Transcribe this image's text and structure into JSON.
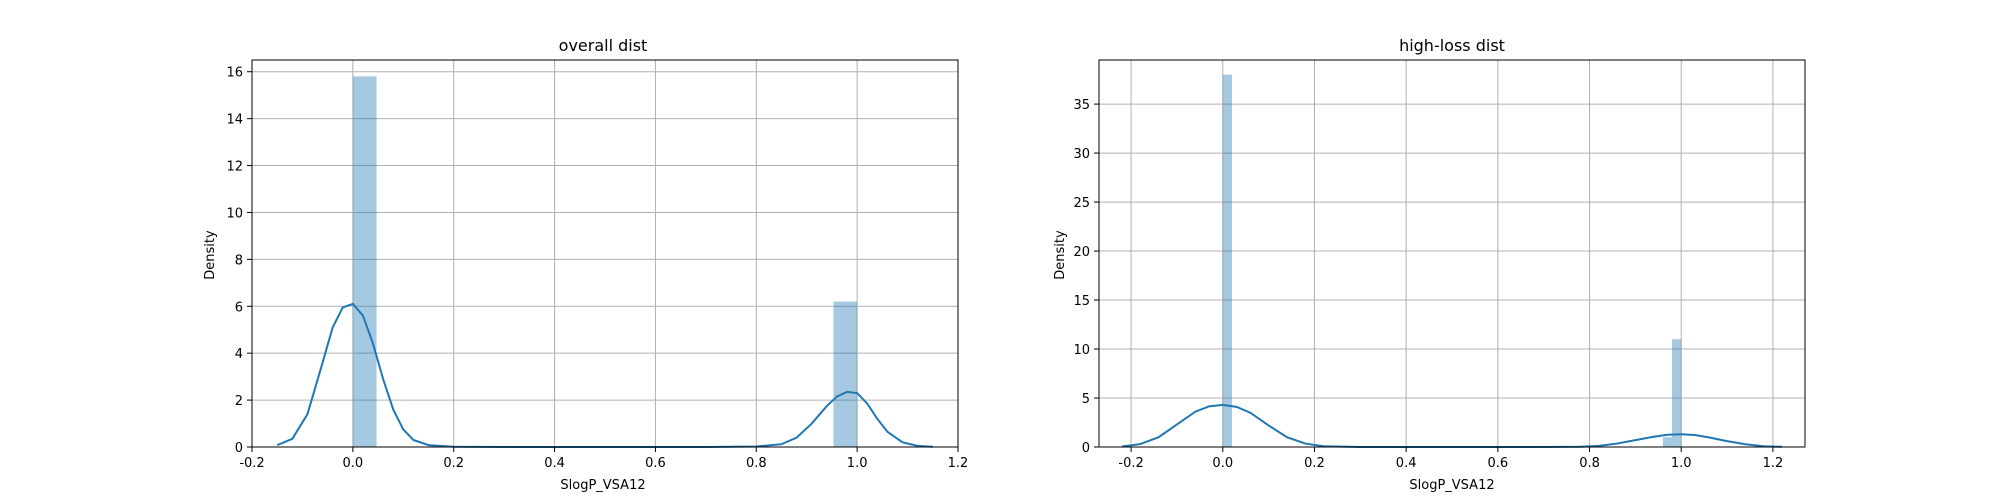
{
  "chart_data": [
    {
      "type": "histogram",
      "title": "overall dist",
      "xlabel": "SlogP_VSA12",
      "ylabel": "Density",
      "xlim": [
        -0.2,
        1.2
      ],
      "ylim": [
        0,
        16.5
      ],
      "xticks": [
        "-0.2",
        "0.0",
        "0.2",
        "0.4",
        "0.6",
        "0.8",
        "1.0",
        "1.2"
      ],
      "yticks": [
        "0",
        "2",
        "4",
        "6",
        "8",
        "10",
        "12",
        "14",
        "16"
      ],
      "grid": true,
      "series": [
        {
          "kind": "hist",
          "bins": [
            {
              "x0": 0.0,
              "x1": 0.047,
              "density": 15.8
            },
            {
              "x0": 0.953,
              "x1": 1.0,
              "density": 6.2
            }
          ]
        },
        {
          "kind": "kde",
          "x": [
            -0.15,
            -0.12,
            -0.09,
            -0.06,
            -0.04,
            -0.02,
            0.0,
            0.02,
            0.04,
            0.06,
            0.08,
            0.1,
            0.12,
            0.15,
            0.2,
            0.3,
            0.5,
            0.7,
            0.8,
            0.85,
            0.88,
            0.91,
            0.94,
            0.96,
            0.98,
            1.0,
            1.02,
            1.04,
            1.06,
            1.09,
            1.12,
            1.15
          ],
          "y": [
            0.08,
            0.35,
            1.4,
            3.6,
            5.1,
            5.95,
            6.1,
            5.6,
            4.4,
            2.9,
            1.6,
            0.75,
            0.3,
            0.08,
            0.01,
            0.0,
            0.0,
            0.0,
            0.02,
            0.12,
            0.4,
            1.0,
            1.75,
            2.15,
            2.35,
            2.3,
            1.85,
            1.2,
            0.65,
            0.2,
            0.05,
            0.01
          ]
        }
      ]
    },
    {
      "type": "histogram",
      "title": "high-loss dist",
      "xlabel": "SlogP_VSA12",
      "ylabel": "Density",
      "xlim": [
        -0.27,
        1.27
      ],
      "ylim": [
        0,
        39.5
      ],
      "xticks": [
        "-0.2",
        "0.0",
        "0.2",
        "0.4",
        "0.6",
        "0.8",
        "1.0",
        "1.2"
      ],
      "yticks": [
        "0",
        "5",
        "10",
        "15",
        "20",
        "25",
        "30",
        "35"
      ],
      "grid": true,
      "series": [
        {
          "kind": "hist",
          "bins": [
            {
              "x0": 0.0,
              "x1": 0.02,
              "density": 38.0
            },
            {
              "x0": 0.96,
              "x1": 0.98,
              "density": 1.0
            },
            {
              "x0": 0.98,
              "x1": 1.0,
              "density": 11.0
            }
          ]
        },
        {
          "kind": "kde",
          "x": [
            -0.22,
            -0.18,
            -0.14,
            -0.1,
            -0.06,
            -0.03,
            0.0,
            0.03,
            0.06,
            0.1,
            0.14,
            0.18,
            0.22,
            0.3,
            0.5,
            0.7,
            0.78,
            0.82,
            0.86,
            0.9,
            0.94,
            0.97,
            1.0,
            1.03,
            1.06,
            1.1,
            1.14,
            1.18,
            1.22
          ],
          "y": [
            0.05,
            0.3,
            1.0,
            2.3,
            3.6,
            4.15,
            4.3,
            4.1,
            3.5,
            2.2,
            1.0,
            0.35,
            0.08,
            0.0,
            0.0,
            0.0,
            0.03,
            0.12,
            0.35,
            0.7,
            1.05,
            1.25,
            1.3,
            1.22,
            0.98,
            0.6,
            0.28,
            0.08,
            0.02
          ]
        }
      ]
    }
  ]
}
